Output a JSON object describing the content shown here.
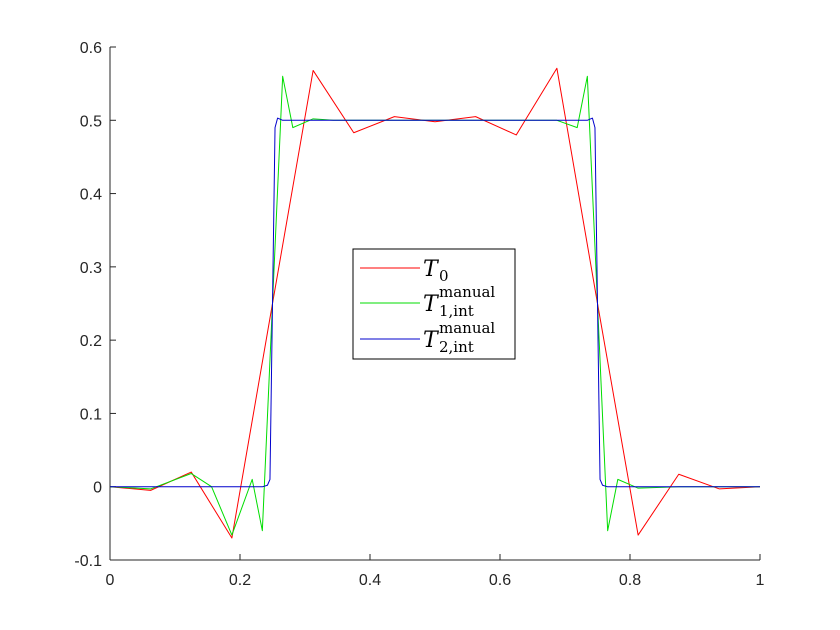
{
  "chart_data": {
    "type": "line",
    "title": "",
    "xlabel": "",
    "ylabel": "",
    "xlim": [
      0,
      1
    ],
    "ylim": [
      -0.1,
      0.6
    ],
    "x_ticks": [
      "0",
      "0.2",
      "0.4",
      "0.6",
      "0.8",
      "1"
    ],
    "y_ticks": [
      "-0.1",
      "0",
      "0.1",
      "0.2",
      "0.3",
      "0.4",
      "0.5",
      "0.6"
    ],
    "grid": false,
    "legend_position": "center",
    "series": [
      {
        "name": "T0",
        "legend_main": "T",
        "legend_sub": "0",
        "legend_sup": "",
        "color": "#ff0000",
        "x": [
          0,
          0.0625,
          0.125,
          0.1875,
          0.25,
          0.3125,
          0.375,
          0.4375,
          0.5,
          0.5625,
          0.625,
          0.6875,
          0.75,
          0.8125,
          0.875,
          0.9375,
          1
        ],
        "y": [
          0,
          -0.005,
          0.02,
          -0.07,
          0.25,
          0.568,
          0.483,
          0.505,
          0.498,
          0.505,
          0.48,
          0.571,
          0.25,
          -0.066,
          0.017,
          -0.003,
          0
        ]
      },
      {
        "name": "T1,int manual",
        "legend_main": "T",
        "legend_sub": "1,int",
        "legend_sup": "manual",
        "color": "#00dd00",
        "x": [
          0,
          0.0625,
          0.125,
          0.15625,
          0.1875,
          0.21875,
          0.234375,
          0.25,
          0.265625,
          0.28125,
          0.3125,
          0.34375,
          0.375,
          0.5,
          0.625,
          0.65625,
          0.6875,
          0.71875,
          0.734375,
          0.75,
          0.765625,
          0.78125,
          0.8125,
          0.875,
          1
        ],
        "y": [
          0,
          -0.003,
          0.018,
          0.0,
          -0.066,
          0.01,
          -0.06,
          0.25,
          0.56,
          0.49,
          0.502,
          0.5,
          0.5,
          0.5,
          0.5,
          0.5,
          0.5,
          0.49,
          0.56,
          0.25,
          -0.06,
          0.01,
          -0.002,
          0,
          0
        ]
      },
      {
        "name": "T2,int manual",
        "legend_main": "T",
        "legend_sub": "2,int",
        "legend_sup": "manual",
        "color": "#0000cc",
        "x": [
          0,
          0.235,
          0.2422,
          0.2461,
          0.25,
          0.2539,
          0.2578,
          0.2656,
          0.5,
          0.7344,
          0.7422,
          0.7461,
          0.75,
          0.7539,
          0.7578,
          0.765,
          1
        ],
        "y": [
          0,
          0,
          0.002,
          0.01,
          0.25,
          0.49,
          0.503,
          0.5,
          0.5,
          0.5,
          0.503,
          0.49,
          0.25,
          0.01,
          0.002,
          0,
          0
        ]
      }
    ]
  }
}
